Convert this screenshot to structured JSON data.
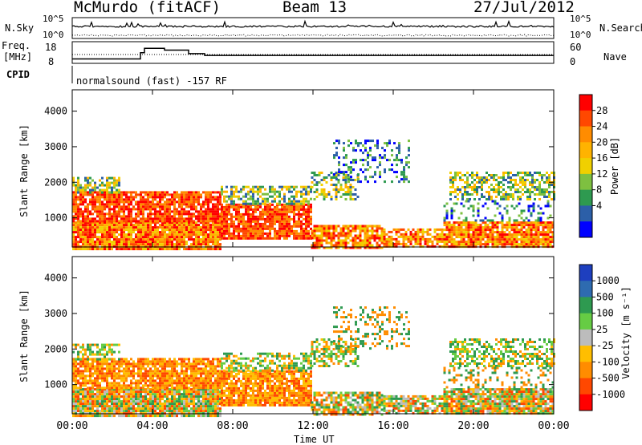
{
  "header": {
    "station": "McMurdo (fitACF)",
    "beam": "Beam 13",
    "date": "27/Jul/2012"
  },
  "panels": {
    "nsky_label": "N.Sky",
    "nsky_ticks": [
      "10^5",
      "10^0"
    ],
    "nsearch_label": "N.Search",
    "nsearch_ticks": [
      "10^5",
      "10^0"
    ],
    "freq_label_1": "Freq.",
    "freq_label_2": "[MHz]",
    "freq_ticks": [
      "18",
      "8"
    ],
    "nave_label": "Nave",
    "nave_ticks": [
      "60",
      "0"
    ],
    "cpid_label": "CPID",
    "cpid_value": "normalsound (fast) -157 RF"
  },
  "power_colorbar": {
    "title": "Power [dB]",
    "ticks": [
      "28",
      "24",
      "20",
      "16",
      "12",
      "8",
      "4"
    ],
    "colors": [
      "#ff0000",
      "#ff4800",
      "#ff8c00",
      "#ffb300",
      "#f0d000",
      "#7ec040",
      "#2e9a50",
      "#2c5fa8",
      "#0000ff"
    ]
  },
  "velocity_colorbar": {
    "title": "Velocity [m s⁻¹]",
    "ticks": [
      "1000",
      "500",
      "100",
      "25",
      "-25",
      "-100",
      "-500",
      "-1000"
    ],
    "colors": [
      "#1e3fbf",
      "#2e6bb0",
      "#2e9a50",
      "#66cc44",
      "#bcbcbc",
      "#ffbe00",
      "#ff8c00",
      "#ff4800",
      "#ff0000"
    ]
  },
  "chart_data": {
    "type": "heatmap",
    "xlabel": "Time UT",
    "ylabel": "Slant Range [km]",
    "x_ticks": [
      "00:00",
      "04:00",
      "08:00",
      "12:00",
      "16:00",
      "20:00",
      "00:00"
    ],
    "y_ticks": [
      "1000",
      "2000",
      "3000",
      "4000"
    ],
    "xlim_hours": [
      0,
      24
    ],
    "ylim_km": [
      180,
      4600
    ],
    "panels": [
      "Power [dB]",
      "Velocity [m s⁻¹]"
    ],
    "frequency_steps": [
      {
        "x": [
          0,
          3.4
        ],
        "y": 10.5
      },
      {
        "x": [
          3.4,
          3.6
        ],
        "y": 14
      },
      {
        "x": [
          3.6,
          4.6
        ],
        "y": 16.5
      },
      {
        "x": [
          4.6,
          5.8
        ],
        "y": 15.5
      },
      {
        "x": [
          5.8,
          6.6
        ],
        "y": 13.5
      },
      {
        "x": [
          6.6,
          24
        ],
        "y": 12.5
      }
    ]
  }
}
